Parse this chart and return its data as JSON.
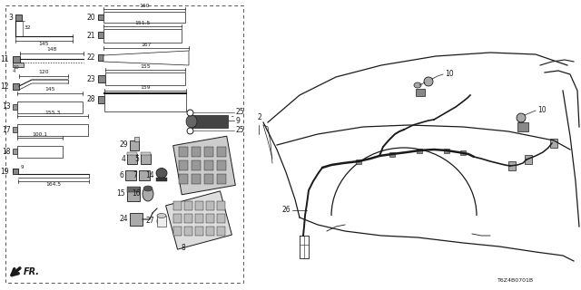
{
  "bg_color": "#ffffff",
  "line_color": "#1a1a1a",
  "dpi": 100,
  "figsize": [
    6.4,
    3.2
  ],
  "diagram_code": "T6Z4B0701B"
}
